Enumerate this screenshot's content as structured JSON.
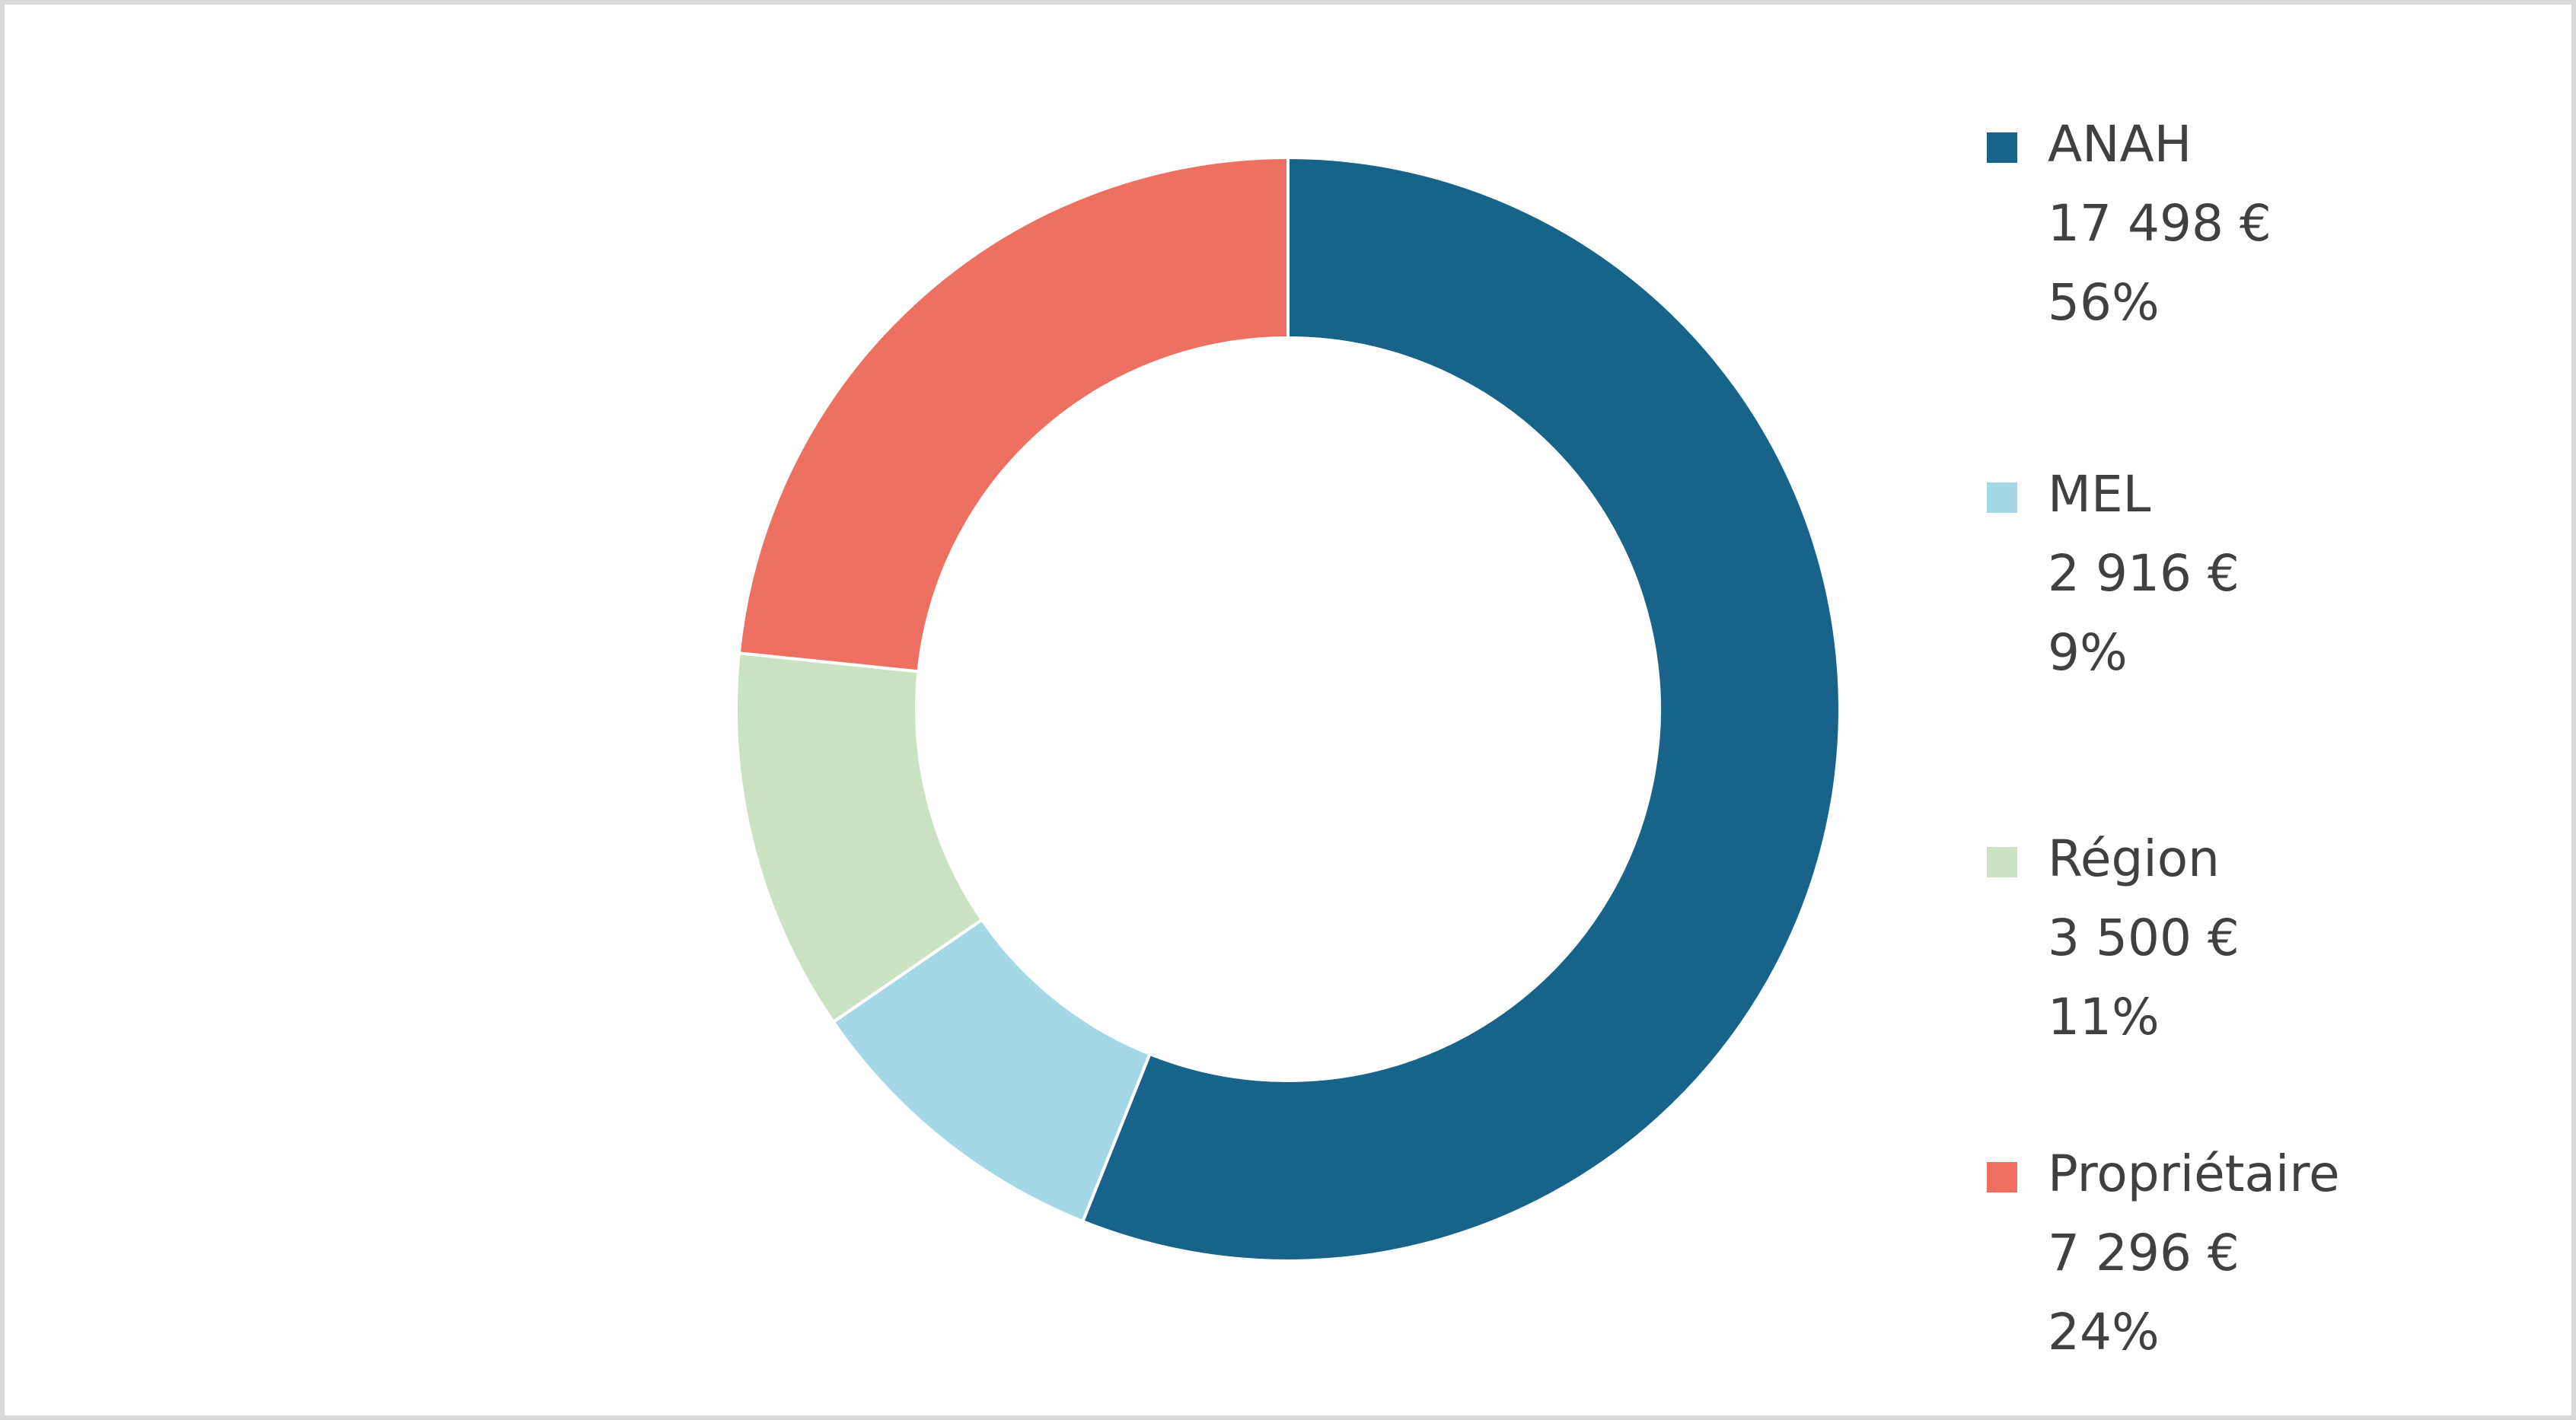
{
  "chart_data": {
    "type": "donut",
    "categories": [
      "ANAH",
      "MEL",
      "Région",
      "Propriétaire"
    ],
    "values": [
      17498,
      2916,
      3500,
      7296
    ],
    "value_labels": [
      "17 498 €",
      "2 916 €",
      "3 500 €",
      "7 296 €"
    ],
    "percent_labels": [
      "56%",
      "9%",
      "11%",
      "24%"
    ],
    "colors": [
      "#17638a",
      "#a5d8e6",
      "#cbe3c3",
      "#ed7060"
    ],
    "legend": "right"
  }
}
